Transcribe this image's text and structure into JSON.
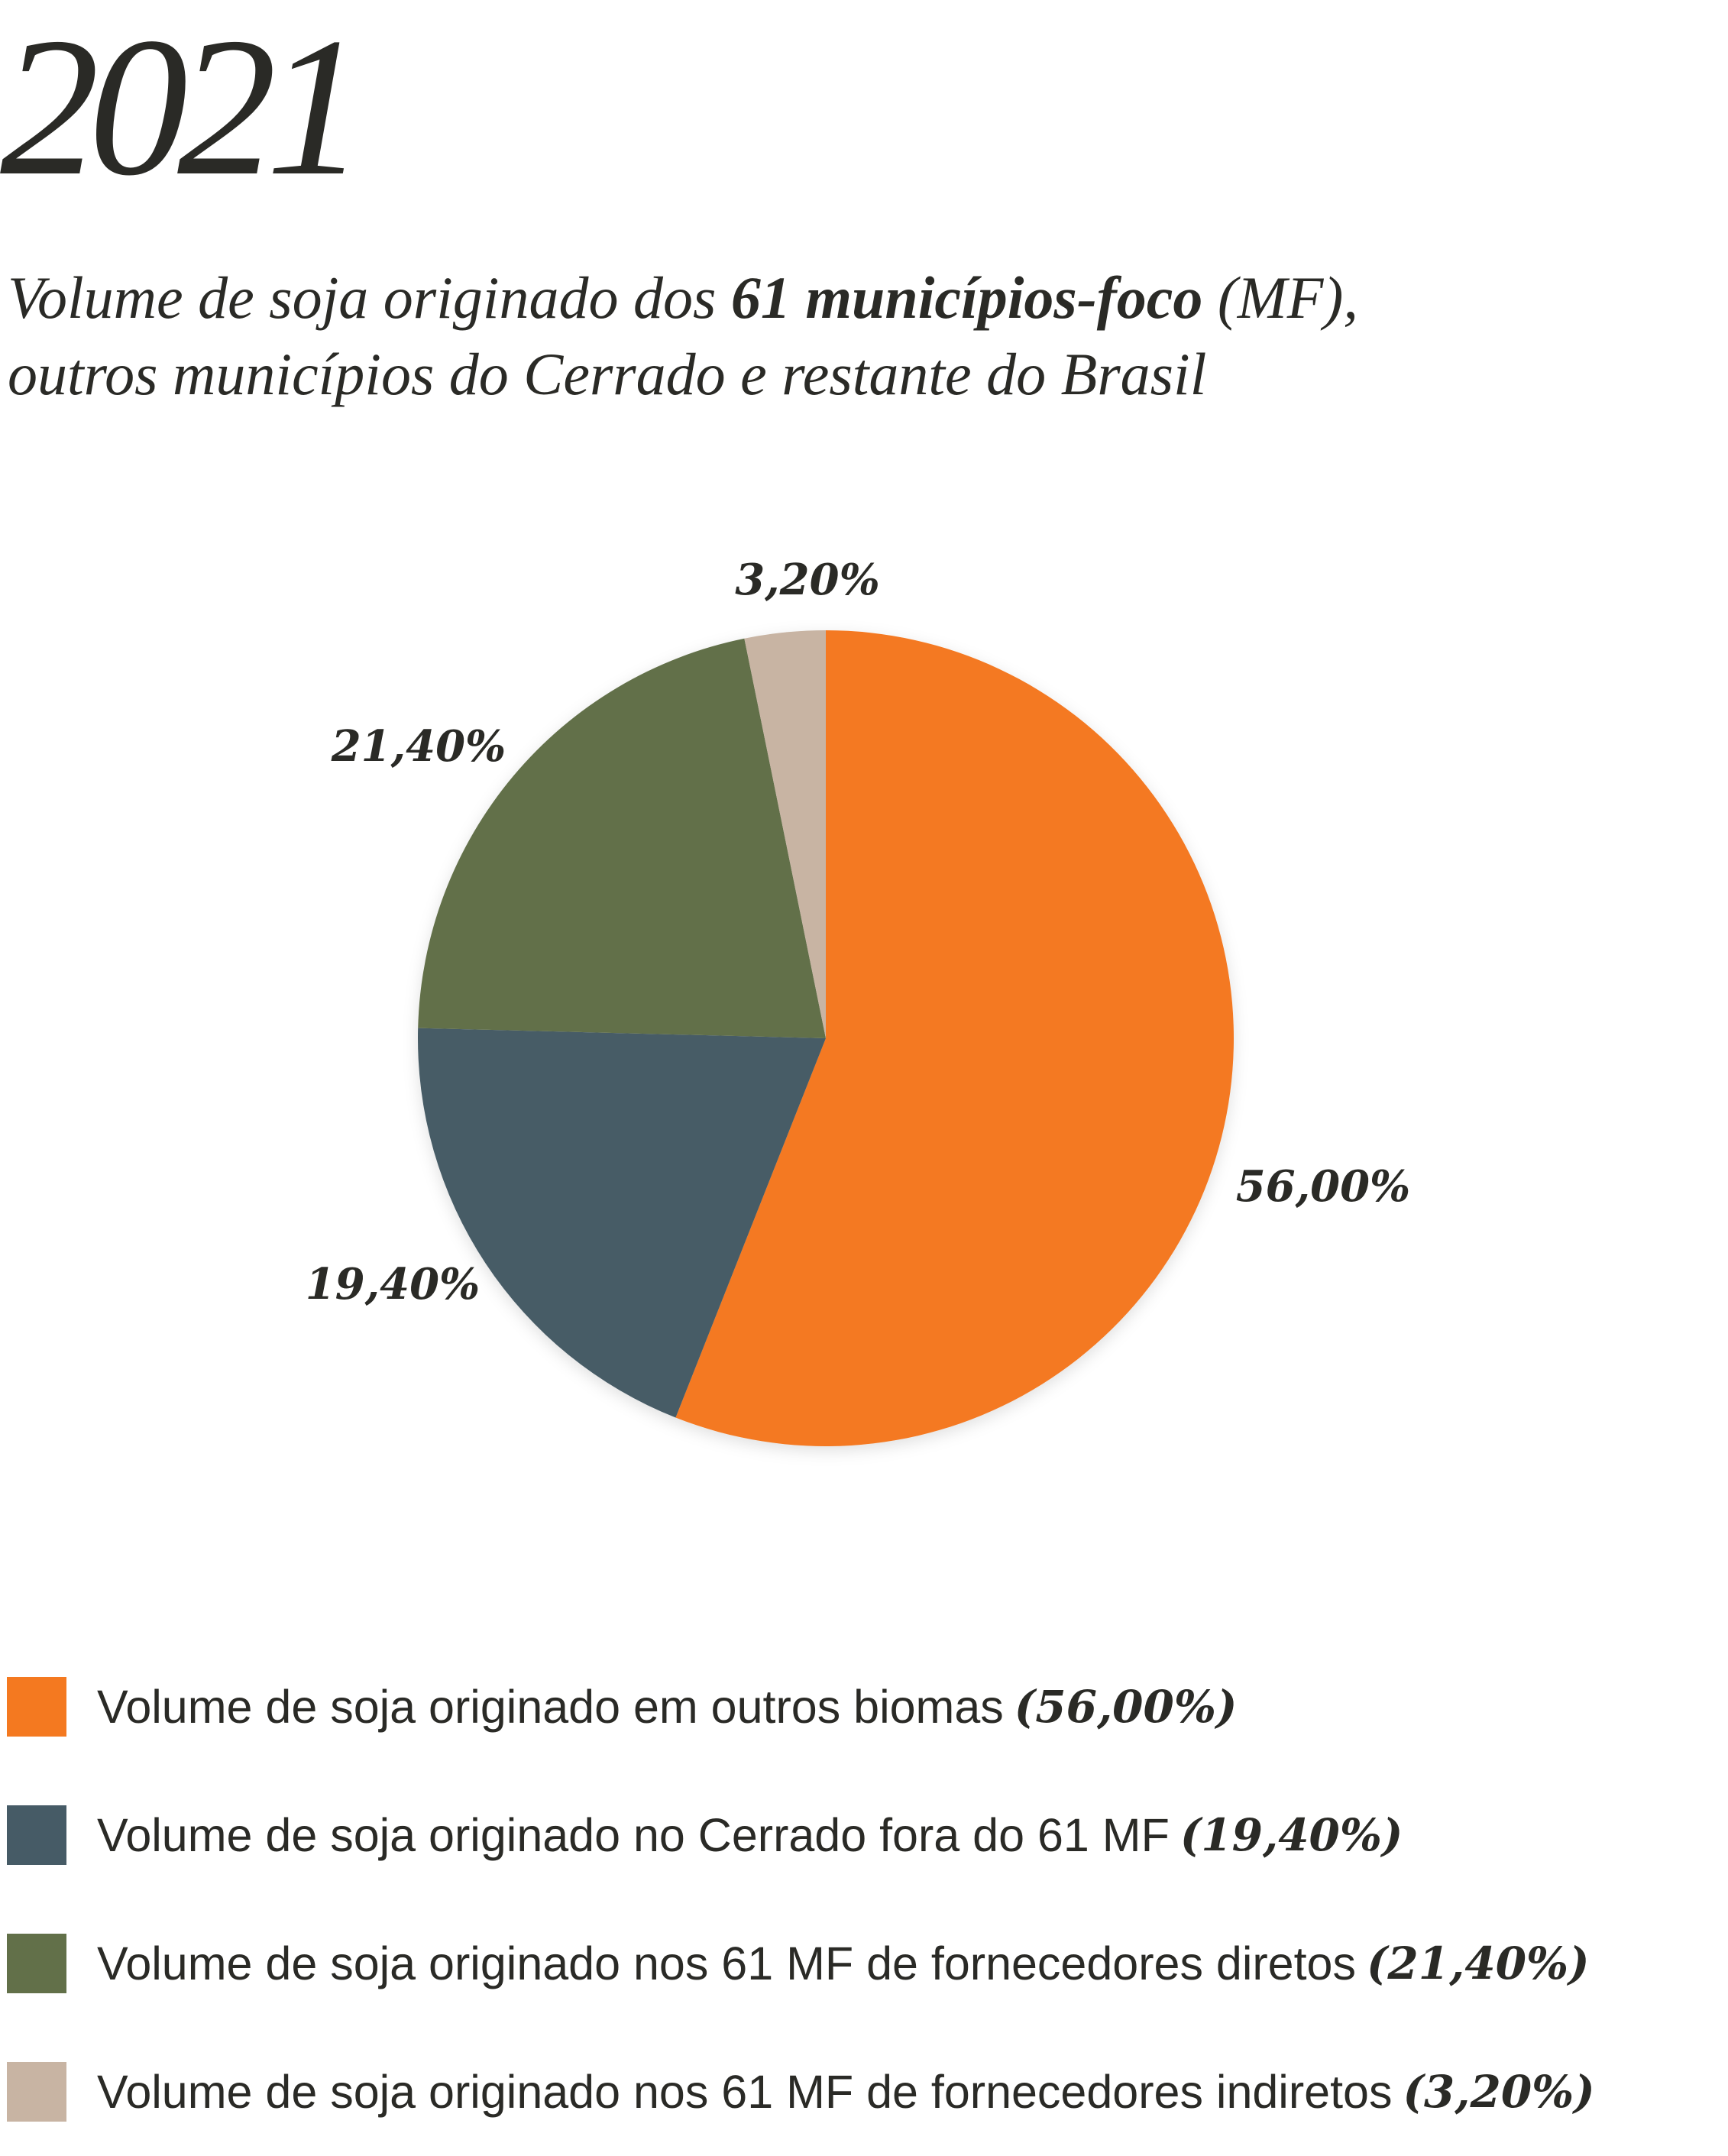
{
  "title": "2021",
  "subtitle": {
    "part1": "Volume de soja originado dos ",
    "bold": "61 municípios-foco",
    "part2": " (MF),",
    "line2": "outros municípios do Cerrado e restante do Brasil"
  },
  "chart_data": {
    "type": "pie",
    "title": "Volume de soja originado dos 61 municípios-foco (MF), outros municípios do Cerrado e restante do Brasil",
    "start": "top",
    "direction": "clockwise",
    "slices": [
      {
        "name": "Volume de soja originado em outros biomas",
        "value": 56.0,
        "label": "56,00%",
        "legend_pct": "(56,00%)",
        "color": "#F47920"
      },
      {
        "name": "Volume de soja originado no Cerrado fora do 61 MF",
        "value": 19.4,
        "label": "19,40%",
        "legend_pct": "(19,40%)",
        "color": "#465B66"
      },
      {
        "name": "Volume de soja originado nos 61 MF de fornecedores diretos",
        "value": 21.4,
        "label": "21,40%",
        "legend_pct": "(21,40%)",
        "color": "#627049"
      },
      {
        "name": "Volume de soja originado nos 61 MF de fornecedores indiretos",
        "value": 3.2,
        "label": "3,20%",
        "legend_pct": "(3,20%)",
        "color": "#C8B4A3"
      }
    ],
    "legend_position": "bottom"
  }
}
